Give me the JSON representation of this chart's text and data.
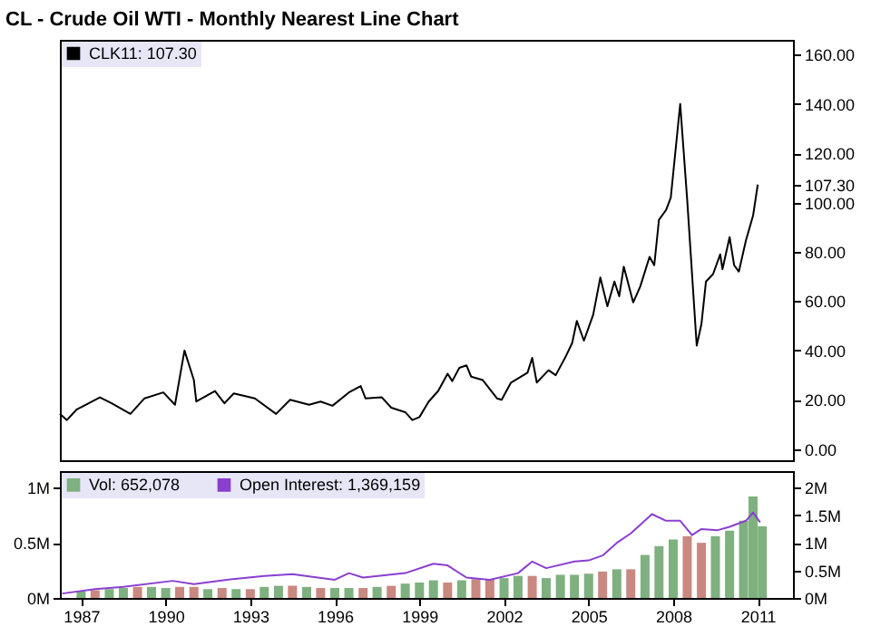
{
  "chart_data": [
    {
      "type": "line",
      "title": "CL - Crude Oil WTI - Monthly Nearest Line Chart",
      "xlim": [
        "1986-04",
        "2012-04"
      ],
      "ylim": [
        -4.5,
        166
      ],
      "yticks": [
        {
          "value": 0,
          "label": "0.00"
        },
        {
          "value": 20,
          "label": "20.00"
        },
        {
          "value": 40,
          "label": "40.00"
        },
        {
          "value": 60,
          "label": "60.00"
        },
        {
          "value": 80,
          "label": "80.00"
        },
        {
          "value": 100,
          "label": "100.00"
        },
        {
          "value": 107.3,
          "label": "107.30"
        },
        {
          "value": 120,
          "label": "120.00"
        },
        {
          "value": 140,
          "label": "140.00"
        },
        {
          "value": 160,
          "label": "160.00"
        }
      ],
      "tick_labels": "y",
      "legend": "top left",
      "series": [
        {
          "name": "CLK11: 107.30",
          "color": "#000000",
          "x": [
            "1986-04",
            "1986-07",
            "1986-11",
            "1987-03",
            "1987-09",
            "1988-02",
            "1988-10",
            "1989-04",
            "1989-12",
            "1990-05",
            "1990-09",
            "1991-01",
            "1991-02",
            "1991-10",
            "1992-02",
            "1992-06",
            "1993-03",
            "1993-12",
            "1994-06",
            "1995-02",
            "1995-07",
            "1995-12",
            "1996-07",
            "1996-12",
            "1997-02",
            "1997-09",
            "1998-01",
            "1998-07",
            "1998-10",
            "1999-01",
            "1999-05",
            "1999-09",
            "2000-01",
            "2000-03",
            "2000-06",
            "2000-09",
            "2000-11",
            "2001-04",
            "2001-10",
            "2001-12",
            "2002-04",
            "2002-11",
            "2003-01",
            "2003-03",
            "2003-08",
            "2003-11",
            "2004-03",
            "2004-06",
            "2004-08",
            "2004-11",
            "2005-03",
            "2005-06",
            "2005-09",
            "2005-12",
            "2006-02",
            "2006-04",
            "2006-08",
            "2006-11",
            "2007-03",
            "2007-05",
            "2007-07",
            "2007-10",
            "2007-12",
            "2008-04",
            "2008-07",
            "2008-11",
            "2009-01",
            "2009-03",
            "2009-06",
            "2009-09",
            "2009-10",
            "2010-01",
            "2010-03",
            "2010-05",
            "2010-08",
            "2010-11",
            "2011-01"
          ],
          "values": [
            14.3,
            11.8,
            16,
            18,
            21,
            18.6,
            14.3,
            20.6,
            23,
            18,
            40,
            28,
            19.3,
            23.6,
            18.6,
            22.6,
            20.6,
            14.3,
            20,
            18,
            19.3,
            17.6,
            23,
            25.6,
            20.6,
            21,
            16.8,
            15,
            11.8,
            13,
            19.3,
            23.6,
            30.6,
            27.6,
            33,
            34,
            29.4,
            28,
            20.6,
            20,
            27,
            31,
            37,
            27,
            32,
            30,
            37,
            43,
            52,
            44,
            54.5,
            69.6,
            58,
            68,
            62,
            74,
            59.5,
            66,
            78,
            74.6,
            93,
            97,
            102,
            140,
            101,
            42,
            50.7,
            68,
            71,
            79,
            73,
            86,
            74.6,
            72,
            84.7,
            94.7,
            107.3
          ]
        }
      ]
    },
    {
      "type": "bar",
      "xlim": [
        "1986-04",
        "2012-04"
      ],
      "xticks": [
        "1987",
        "1990",
        "1993",
        "1996",
        "1999",
        "2002",
        "2005",
        "2008",
        "2011"
      ],
      "ylim": [
        0,
        1.15
      ],
      "yticks": [
        {
          "value": 0,
          "label": "0M"
        },
        {
          "value": 0.5,
          "label": "0.5M"
        },
        {
          "value": 1,
          "label": "1M"
        }
      ],
      "y2lim": [
        0,
        2.3
      ],
      "y2ticks": [
        {
          "value": 0,
          "label": "0M"
        },
        {
          "value": 0.5,
          "label": "0.5M"
        },
        {
          "value": 1,
          "label": "1M"
        },
        {
          "value": 1.5,
          "label": "1.5M"
        },
        {
          "value": 2,
          "label": "2M"
        }
      ],
      "legend": "top left",
      "series": [
        {
          "name": "Vol: 652,078",
          "color": "#7fb07f",
          "x": [
            "1987-01",
            "1987-07",
            "1988-01",
            "1988-07",
            "1989-01",
            "1989-07",
            "1990-01",
            "1990-07",
            "1991-01",
            "1991-07",
            "1992-01",
            "1992-07",
            "1993-01",
            "1993-07",
            "1994-01",
            "1994-07",
            "1995-01",
            "1995-07",
            "1996-01",
            "1996-07",
            "1997-01",
            "1997-07",
            "1998-01",
            "1998-07",
            "1999-01",
            "1999-07",
            "2000-01",
            "2000-07",
            "2001-01",
            "2001-07",
            "2002-01",
            "2002-07",
            "2003-01",
            "2003-07",
            "2004-01",
            "2004-07",
            "2005-01",
            "2005-07",
            "2006-01",
            "2006-07",
            "2007-01",
            "2007-07",
            "2008-01",
            "2008-07",
            "2009-01",
            "2009-07",
            "2010-01",
            "2010-07",
            "2010-11",
            "2011-03"
          ],
          "values": [
            0.06,
            0.07,
            0.08,
            0.09,
            0.1,
            0.1,
            0.09,
            0.1,
            0.1,
            0.08,
            0.09,
            0.08,
            0.08,
            0.1,
            0.11,
            0.11,
            0.1,
            0.09,
            0.09,
            0.09,
            0.09,
            0.1,
            0.11,
            0.13,
            0.14,
            0.16,
            0.14,
            0.16,
            0.17,
            0.17,
            0.18,
            0.2,
            0.2,
            0.18,
            0.21,
            0.21,
            0.22,
            0.24,
            0.26,
            0.26,
            0.39,
            0.47,
            0.53,
            0.56,
            0.5,
            0.56,
            0.61,
            0.7,
            0.92,
            0.65
          ],
          "colors": [
            "#7fb07f",
            "#c98880",
            "#7fb07f",
            "#7fb07f",
            "#c98880",
            "#7fb07f",
            "#7fb07f",
            "#c98880",
            "#c98880",
            "#7fb07f",
            "#c98880",
            "#7fb07f",
            "#c98880",
            "#7fb07f",
            "#7fb07f",
            "#c98880",
            "#7fb07f",
            "#c98880",
            "#7fb07f",
            "#7fb07f",
            "#c98880",
            "#7fb07f",
            "#c98880",
            "#7fb07f",
            "#7fb07f",
            "#7fb07f",
            "#c98880",
            "#7fb07f",
            "#c98880",
            "#c98880",
            "#7fb07f",
            "#7fb07f",
            "#c98880",
            "#7fb07f",
            "#7fb07f",
            "#7fb07f",
            "#7fb07f",
            "#c98880",
            "#7fb07f",
            "#c98880",
            "#7fb07f",
            "#7fb07f",
            "#7fb07f",
            "#c98880",
            "#c98880",
            "#7fb07f",
            "#7fb07f",
            "#7fb07f",
            "#7fb07f",
            "#7fb07f"
          ]
        },
        {
          "name": "Open Interest: 1,369,159",
          "type": "line",
          "axis": "y2",
          "color": "#8a3fcf",
          "x": [
            "1986-05",
            "1987-07",
            "1988-07",
            "1990-04",
            "1991-01",
            "1992-03",
            "1993-07",
            "1994-07",
            "1996-01",
            "1996-07",
            "1997-01",
            "1998-07",
            "1999-07",
            "2000-01",
            "2000-09",
            "2001-07",
            "2002-07",
            "2003-01",
            "2003-07",
            "2004-07",
            "2005-01",
            "2005-07",
            "2006-01",
            "2006-07",
            "2007-04",
            "2007-10",
            "2008-04",
            "2008-09",
            "2009-01",
            "2009-08",
            "2010-01",
            "2010-08",
            "2010-11",
            "2011-02"
          ],
          "values": [
            0.08,
            0.16,
            0.2,
            0.31,
            0.25,
            0.33,
            0.4,
            0.43,
            0.33,
            0.45,
            0.37,
            0.45,
            0.62,
            0.59,
            0.37,
            0.33,
            0.45,
            0.66,
            0.54,
            0.66,
            0.68,
            0.77,
            1.0,
            1.17,
            1.52,
            1.4,
            1.4,
            1.14,
            1.25,
            1.23,
            1.29,
            1.4,
            1.55,
            1.37
          ]
        }
      ]
    }
  ]
}
